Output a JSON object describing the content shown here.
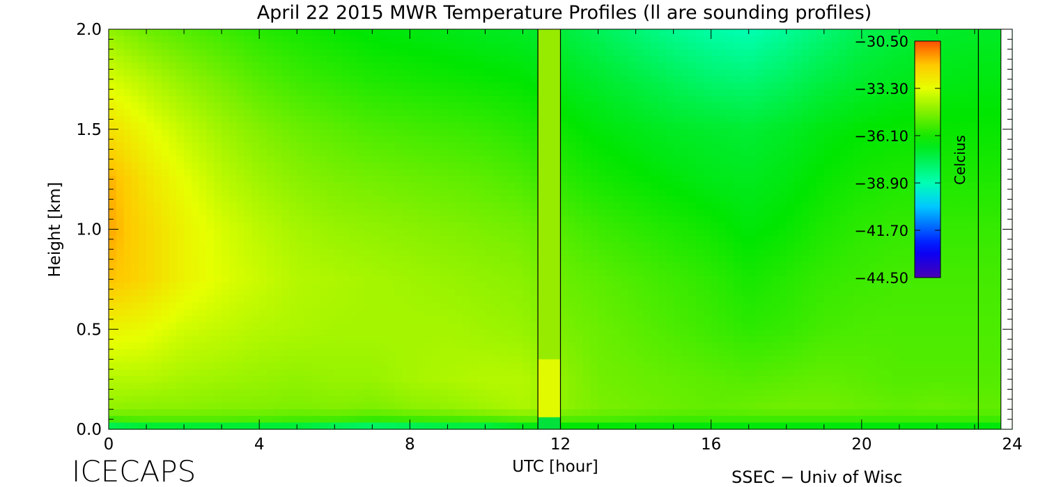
{
  "chart_data": {
    "type": "heatmap",
    "title": "April 22 2015 MWR Temperature Profiles (ll are sounding profiles)",
    "xlabel": "UTC [hour]",
    "ylabel": "Height [km]",
    "xlim": [
      0,
      24
    ],
    "ylim": [
      0.0,
      2.0
    ],
    "x_ticks": [
      0,
      4,
      8,
      12,
      16,
      20,
      24
    ],
    "x_tick_labels": [
      "0",
      "4",
      "8",
      "12",
      "16",
      "20",
      "24"
    ],
    "y_ticks": [
      0.0,
      0.5,
      1.0,
      1.5,
      2.0
    ],
    "y_tick_labels": [
      "0.0",
      "0.5",
      "1.0",
      "1.5",
      "2.0"
    ],
    "colorbar": {
      "label": "Celcius",
      "min": -44.5,
      "max": -30.5,
      "tick_values": [
        -30.5,
        -33.3,
        -36.1,
        -38.9,
        -41.7,
        -44.5
      ],
      "tick_labels": [
        "−30.50",
        "−33.30",
        "−36.10",
        "−38.90",
        "−41.70",
        "−44.50"
      ],
      "placement": "top-right inside plot"
    },
    "sounding_profile_hours": [
      11.4,
      23.1
    ],
    "sounding_band": {
      "x_start": 11.4,
      "x_end": 12.0
    },
    "white_strip": {
      "x_start": 23.7,
      "x_end": 24.0
    },
    "temperature_grid": {
      "units": "Celcius",
      "heights_km": [
        0.0,
        0.05,
        0.1,
        0.25,
        0.5,
        0.75,
        1.0,
        1.25,
        1.5,
        1.75,
        2.0
      ],
      "hours": [
        0,
        1,
        2,
        3,
        4,
        5,
        6,
        7,
        8,
        9,
        10,
        11,
        12,
        13,
        14,
        15,
        16,
        17,
        18,
        19,
        20,
        21,
        22,
        23,
        24
      ],
      "values": [
        [
          -38.5,
          -38.0,
          -38.0,
          -38.0,
          -38.0,
          -38.0,
          -38.5,
          -38.8,
          -38.5,
          -38.2,
          -38.2,
          -37.5,
          -37.0,
          -37.0,
          -37.0,
          -37.0,
          -37.0,
          -37.0,
          -37.0,
          -37.0,
          -37.0,
          -37.0,
          -37.0,
          -37.0,
          -37.0
        ],
        [
          -35.5,
          -35.3,
          -35.3,
          -35.3,
          -35.4,
          -35.5,
          -35.5,
          -35.7,
          -35.6,
          -35.5,
          -35.4,
          -35.2,
          -35.3,
          -35.4,
          -35.5,
          -35.6,
          -35.6,
          -35.6,
          -35.6,
          -35.6,
          -35.6,
          -35.6,
          -35.6,
          -35.6,
          -35.6
        ],
        [
          -34.5,
          -34.6,
          -34.6,
          -34.7,
          -34.7,
          -34.8,
          -34.7,
          -34.8,
          -34.6,
          -34.5,
          -34.3,
          -34.1,
          -34.5,
          -34.8,
          -34.9,
          -35.0,
          -35.1,
          -35.0,
          -34.9,
          -34.9,
          -35.0,
          -35.1,
          -35.0,
          -35.1,
          -35.1
        ],
        [
          -34.0,
          -34.0,
          -34.2,
          -34.3,
          -34.4,
          -34.5,
          -34.4,
          -34.4,
          -34.2,
          -34.1,
          -34.0,
          -34.0,
          -34.5,
          -34.9,
          -35.0,
          -35.1,
          -35.2,
          -35.3,
          -35.2,
          -35.1,
          -35.2,
          -35.3,
          -35.3,
          -35.3,
          -35.3
        ],
        [
          -33.0,
          -33.2,
          -33.6,
          -33.8,
          -34.0,
          -34.1,
          -34.2,
          -34.2,
          -34.2,
          -34.2,
          -34.3,
          -34.4,
          -34.8,
          -35.0,
          -35.2,
          -35.4,
          -35.6,
          -35.8,
          -35.7,
          -35.5,
          -35.4,
          -35.4,
          -35.4,
          -35.4,
          -35.4
        ],
        [
          -31.8,
          -32.3,
          -33.0,
          -33.4,
          -33.7,
          -34.0,
          -34.1,
          -34.2,
          -34.3,
          -34.4,
          -34.5,
          -34.6,
          -35.0,
          -35.2,
          -35.4,
          -35.6,
          -35.8,
          -36.1,
          -35.9,
          -35.7,
          -35.6,
          -35.5,
          -35.5,
          -35.5,
          -35.5
        ],
        [
          -31.5,
          -32.3,
          -33.0,
          -33.5,
          -33.9,
          -34.2,
          -34.4,
          -34.5,
          -34.6,
          -34.7,
          -34.8,
          -34.9,
          -35.3,
          -35.6,
          -35.8,
          -36.0,
          -36.2,
          -36.5,
          -36.3,
          -36.0,
          -35.8,
          -35.7,
          -35.7,
          -35.7,
          -35.7
        ],
        [
          -31.6,
          -32.6,
          -33.3,
          -33.9,
          -34.3,
          -34.6,
          -34.8,
          -34.9,
          -35.0,
          -35.1,
          -35.2,
          -35.4,
          -35.8,
          -36.1,
          -36.3,
          -36.5,
          -36.7,
          -36.8,
          -36.6,
          -36.3,
          -36.1,
          -36.0,
          -36.0,
          -36.0,
          -36.0
        ],
        [
          -32.5,
          -33.2,
          -33.8,
          -34.3,
          -34.7,
          -35.0,
          -35.2,
          -35.4,
          -35.5,
          -35.6,
          -35.7,
          -35.9,
          -36.2,
          -36.5,
          -36.7,
          -36.9,
          -37.0,
          -37.1,
          -36.9,
          -36.6,
          -36.4,
          -36.3,
          -36.3,
          -36.3,
          -36.3
        ],
        [
          -33.5,
          -34.0,
          -34.5,
          -34.9,
          -35.3,
          -35.6,
          -35.8,
          -36.0,
          -36.1,
          -36.2,
          -36.3,
          -36.4,
          -36.7,
          -37.0,
          -37.3,
          -37.6,
          -37.9,
          -38.0,
          -37.7,
          -37.3,
          -37.0,
          -36.8,
          -36.7,
          -36.6,
          -36.6
        ],
        [
          -34.5,
          -35.0,
          -35.3,
          -35.6,
          -35.9,
          -36.1,
          -36.3,
          -36.5,
          -36.6,
          -36.7,
          -36.8,
          -36.9,
          -37.2,
          -37.6,
          -38.0,
          -38.4,
          -38.7,
          -38.9,
          -38.5,
          -38.0,
          -37.5,
          -37.2,
          -37.0,
          -36.9,
          -36.9
        ]
      ]
    }
  },
  "branding": {
    "left_label": "ICECAPS",
    "right_label": "SSEC − Univ of Wisc"
  }
}
